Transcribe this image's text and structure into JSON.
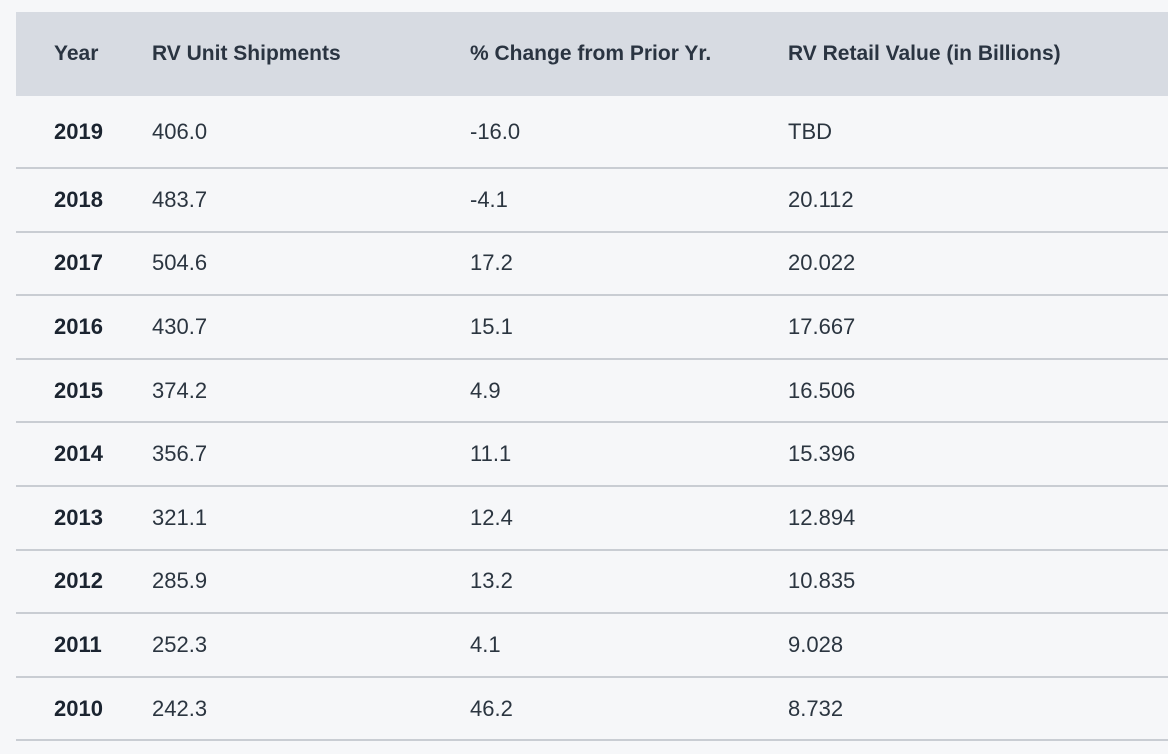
{
  "chart_data": {
    "type": "table",
    "columns": [
      "Year",
      "RV Unit Shipments",
      "% Change from Prior Yr.",
      "RV Retail Value (in Billions)"
    ],
    "rows": [
      [
        "2019",
        "406.0",
        "-16.0",
        "TBD"
      ],
      [
        "2018",
        "483.7",
        "-4.1",
        "20.112"
      ],
      [
        "2017",
        "504.6",
        "17.2",
        "20.022"
      ],
      [
        "2016",
        "430.7",
        "15.1",
        "17.667"
      ],
      [
        "2015",
        "374.2",
        "4.9",
        "16.506"
      ],
      [
        "2014",
        "356.7",
        "11.1",
        "15.396"
      ],
      [
        "2013",
        "321.1",
        "12.4",
        "12.894"
      ],
      [
        "2012",
        "285.9",
        "13.2",
        "10.835"
      ],
      [
        "2011",
        "252.3",
        "4.1",
        "9.028"
      ],
      [
        "2010",
        "242.3",
        "46.2",
        "8.732"
      ]
    ]
  },
  "colors": {
    "header_bg": "#d7dbe2",
    "page_bg": "#f6f7f9",
    "row_divider": "#c9cdd3",
    "text": "#2b3540"
  }
}
